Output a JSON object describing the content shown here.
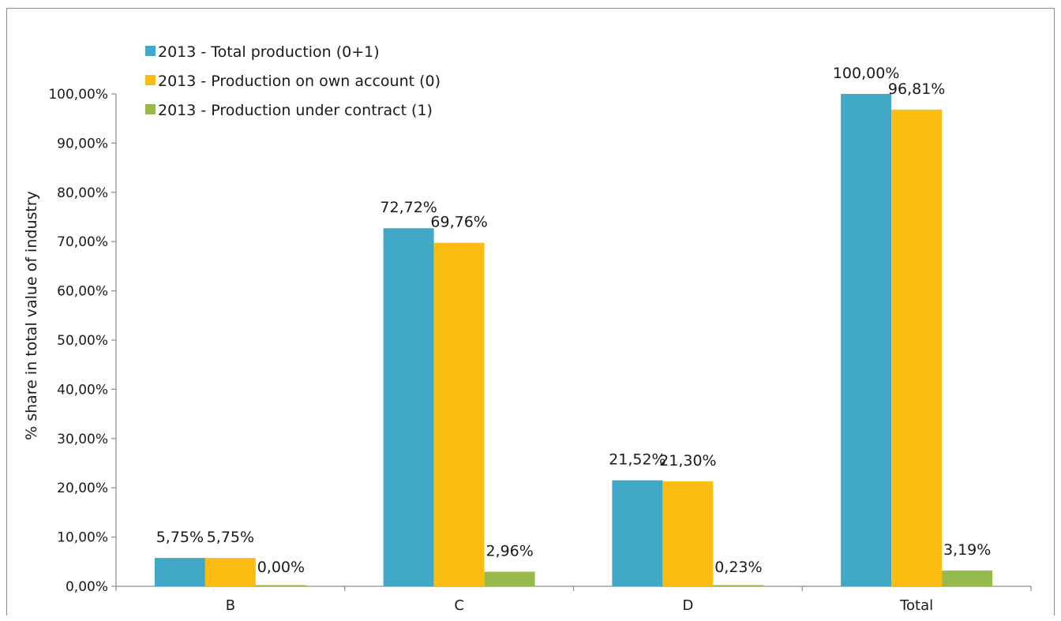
{
  "chart_data": {
    "type": "bar",
    "title": "",
    "xlabel": "",
    "ylabel": "% share in total value of industry",
    "ylim": [
      0,
      100
    ],
    "yticks": [
      "0,00%",
      "10,00%",
      "20,00%",
      "30,00%",
      "40,00%",
      "50,00%",
      "60,00%",
      "70,00%",
      "80,00%",
      "90,00%",
      "100,00%"
    ],
    "categories": [
      "B",
      "C",
      "D",
      "Total"
    ],
    "grid": false,
    "legend_position": "top-left",
    "series": [
      {
        "name": "2013 - Total production (0+1)",
        "color": "#41A8C6",
        "values": [
          5.75,
          72.72,
          21.52,
          100.0
        ],
        "labels": [
          "5,75%",
          "72,72%",
          "21,52%",
          "100,00%"
        ]
      },
      {
        "name": "2013 - Production on own account (0)",
        "color": "#FCBD12",
        "values": [
          5.75,
          69.76,
          21.3,
          96.81
        ],
        "labels": [
          "5,75%",
          "69,76%",
          "21,30%",
          "96,81%"
        ]
      },
      {
        "name": "2013 - Production under contract (1)",
        "color": "#97BA4C",
        "values": [
          0.0,
          2.96,
          0.23,
          3.19
        ],
        "labels": [
          "0,00%",
          "2,96%",
          "0,23%",
          "3,19%"
        ]
      }
    ]
  }
}
